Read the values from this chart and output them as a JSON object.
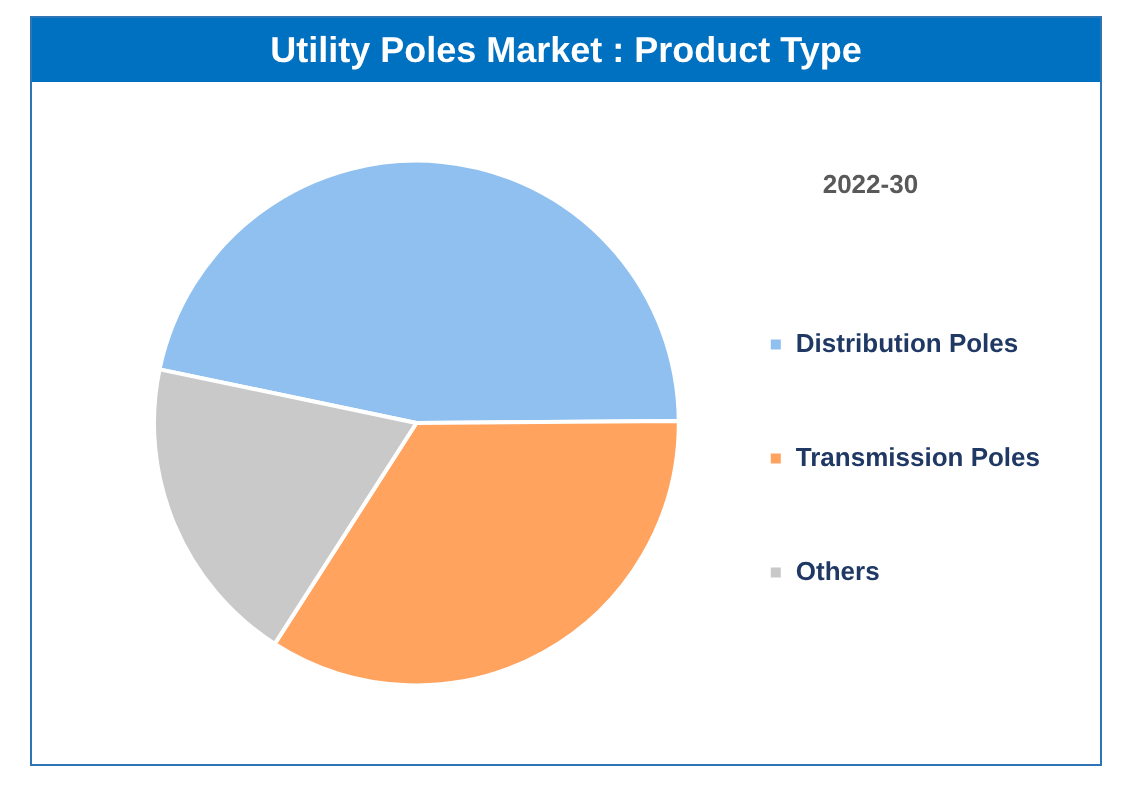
{
  "chart_data": {
    "type": "pie",
    "title": "Utility Poles Market : Product Type",
    "legend_title": "2022-30",
    "legend": "right",
    "categories": [
      "Distribution Poles",
      "Transmission Poles",
      "Others"
    ],
    "values": [
      46.6,
      34.2,
      19.2
    ],
    "colors": [
      "#8fc0ef",
      "#ffa35f",
      "#c9c9c9"
    ]
  }
}
